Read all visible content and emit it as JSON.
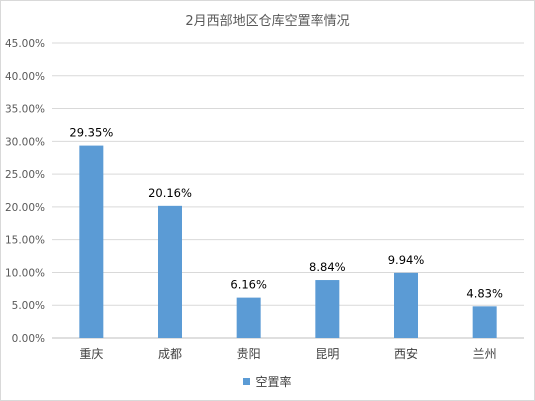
{
  "chart_data": {
    "type": "bar",
    "title": "2月西部地区仓库空置率情况",
    "categories": [
      "重庆",
      "成都",
      "贵阳",
      "昆明",
      "西安",
      "兰州"
    ],
    "series": [
      {
        "name": "空置率",
        "values": [
          29.35,
          20.16,
          6.16,
          8.84,
          9.94,
          4.83
        ],
        "color": "#5b9bd5"
      }
    ],
    "data_labels": [
      "29.35%",
      "20.16%",
      "6.16%",
      "8.84%",
      "9.94%",
      "4.83%"
    ],
    "ylim": [
      0,
      45
    ],
    "yticks": [
      "0.00%",
      "5.00%",
      "10.00%",
      "15.00%",
      "20.00%",
      "25.00%",
      "30.00%",
      "35.00%",
      "40.00%",
      "45.00%"
    ],
    "grid": true,
    "legend_position": "bottom"
  }
}
